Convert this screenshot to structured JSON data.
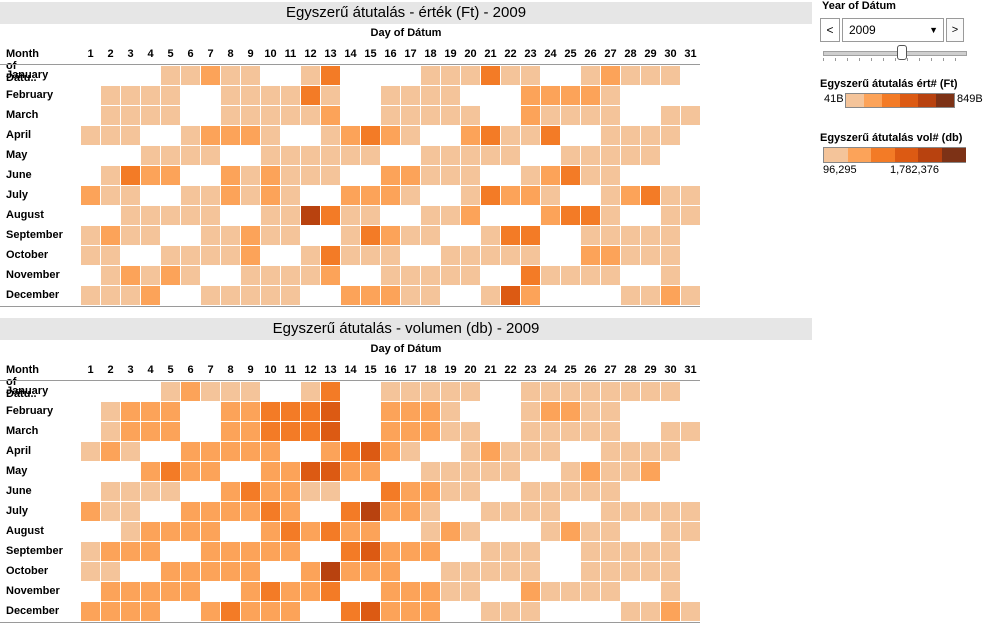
{
  "colors": [
    "#f4c49a",
    "#fca359",
    "#f37b26",
    "#dc5a13",
    "#b8420f",
    "#7d3216"
  ],
  "months": [
    "January",
    "February",
    "March",
    "April",
    "May",
    "June",
    "July",
    "August",
    "September",
    "October",
    "November",
    "December"
  ],
  "days": [
    "1",
    "2",
    "3",
    "4",
    "5",
    "6",
    "7",
    "8",
    "9",
    "10",
    "11",
    "12",
    "13",
    "14",
    "15",
    "16",
    "17",
    "18",
    "19",
    "20",
    "21",
    "22",
    "23",
    "24",
    "25",
    "26",
    "27",
    "28",
    "29",
    "30",
    "31"
  ],
  "row_header": "Month of Dátu..",
  "axis_title": "Day of Dátum",
  "controls": {
    "year_label": "Year of Dátum",
    "year_value": "2009",
    "prev": "<",
    "next": ">"
  },
  "legend_value": {
    "title": "Egyszerű átutalás ért# (Ft)",
    "min_label": "41B",
    "max_label": "849B"
  },
  "legend_volume": {
    "title": "Egyszerű átutalás vol# (db)",
    "min_label": "96,295",
    "max_label": "1,782,376"
  },
  "chart_data": [
    {
      "type": "heatmap",
      "title": "Egyszerű átutalás - érték (Ft) - 2009",
      "xlabel": "Day of Dátum",
      "ylabel": "Month of Dátu..",
      "scale": "0 = no transaction day, 1..6 = light to dark intensity bins",
      "rows": [
        [
          0,
          0,
          0,
          0,
          1,
          1,
          2,
          1,
          1,
          0,
          0,
          1,
          3,
          0,
          0,
          0,
          0,
          1,
          1,
          1,
          3,
          1,
          1,
          0,
          0,
          1,
          2,
          1,
          1,
          1,
          0
        ],
        [
          0,
          1,
          1,
          1,
          1,
          0,
          0,
          1,
          1,
          1,
          1,
          3,
          1,
          0,
          0,
          1,
          1,
          1,
          1,
          0,
          0,
          0,
          2,
          2,
          2,
          2,
          1,
          0,
          0,
          0,
          0
        ],
        [
          0,
          1,
          1,
          1,
          1,
          0,
          0,
          1,
          1,
          1,
          1,
          1,
          2,
          0,
          0,
          1,
          1,
          1,
          1,
          1,
          0,
          0,
          2,
          1,
          1,
          1,
          1,
          0,
          0,
          1,
          1
        ],
        [
          1,
          1,
          1,
          0,
          0,
          1,
          2,
          2,
          2,
          1,
          0,
          0,
          1,
          2,
          3,
          2,
          1,
          0,
          0,
          2,
          3,
          1,
          1,
          3,
          0,
          0,
          1,
          1,
          1,
          1,
          0
        ],
        [
          0,
          0,
          0,
          1,
          1,
          1,
          1,
          0,
          0,
          1,
          1,
          1,
          1,
          1,
          1,
          0,
          0,
          1,
          1,
          1,
          1,
          1,
          0,
          0,
          1,
          1,
          1,
          1,
          1,
          0,
          0
        ],
        [
          0,
          1,
          3,
          2,
          2,
          0,
          0,
          2,
          1,
          2,
          1,
          1,
          1,
          0,
          0,
          2,
          2,
          1,
          1,
          1,
          0,
          0,
          1,
          2,
          3,
          1,
          1,
          0,
          0,
          0,
          0
        ],
        [
          2,
          1,
          1,
          0,
          0,
          1,
          1,
          2,
          1,
          2,
          1,
          0,
          0,
          2,
          2,
          2,
          1,
          0,
          0,
          1,
          3,
          2,
          2,
          1,
          0,
          0,
          1,
          2,
          3,
          1,
          1
        ],
        [
          0,
          0,
          1,
          1,
          1,
          1,
          1,
          0,
          0,
          1,
          1,
          5,
          3,
          1,
          1,
          0,
          0,
          1,
          1,
          2,
          0,
          0,
          0,
          2,
          3,
          3,
          1,
          0,
          0,
          1,
          1
        ],
        [
          1,
          2,
          1,
          1,
          0,
          0,
          1,
          1,
          2,
          1,
          1,
          0,
          0,
          1,
          3,
          2,
          1,
          1,
          0,
          0,
          1,
          3,
          3,
          0,
          0,
          1,
          1,
          1,
          1,
          1,
          0
        ],
        [
          1,
          1,
          0,
          0,
          1,
          1,
          1,
          1,
          2,
          0,
          0,
          1,
          3,
          1,
          1,
          1,
          0,
          0,
          1,
          1,
          1,
          1,
          1,
          0,
          0,
          2,
          2,
          1,
          1,
          1,
          0
        ],
        [
          0,
          1,
          2,
          1,
          2,
          1,
          0,
          0,
          1,
          1,
          1,
          1,
          2,
          0,
          0,
          1,
          1,
          1,
          1,
          1,
          0,
          0,
          3,
          1,
          1,
          1,
          1,
          0,
          0,
          1,
          0
        ],
        [
          1,
          1,
          1,
          2,
          0,
          0,
          1,
          1,
          1,
          1,
          1,
          0,
          0,
          2,
          2,
          2,
          1,
          1,
          0,
          0,
          1,
          4,
          2,
          0,
          0,
          0,
          0,
          1,
          1,
          2,
          1
        ]
      ]
    },
    {
      "type": "heatmap",
      "title": "Egyszerű átutalás - volumen (db) - 2009",
      "xlabel": "Day of Dátum",
      "ylabel": "Month of Dátu..",
      "scale": "0 = no transaction day, 1..6 = light to dark intensity bins",
      "rows": [
        [
          0,
          0,
          0,
          0,
          1,
          2,
          1,
          1,
          1,
          0,
          0,
          1,
          3,
          0,
          0,
          1,
          1,
          1,
          1,
          1,
          0,
          0,
          1,
          1,
          1,
          1,
          1,
          1,
          1,
          1,
          0
        ],
        [
          0,
          1,
          2,
          2,
          2,
          0,
          0,
          2,
          2,
          3,
          3,
          3,
          4,
          0,
          0,
          2,
          2,
          2,
          1,
          0,
          0,
          0,
          1,
          2,
          2,
          1,
          1,
          0,
          0,
          0,
          0
        ],
        [
          0,
          1,
          2,
          2,
          2,
          0,
          0,
          2,
          2,
          3,
          3,
          3,
          4,
          0,
          0,
          2,
          2,
          2,
          1,
          1,
          0,
          0,
          1,
          1,
          1,
          1,
          1,
          0,
          0,
          1,
          1
        ],
        [
          1,
          2,
          1,
          0,
          0,
          2,
          2,
          2,
          2,
          2,
          0,
          0,
          2,
          3,
          4,
          2,
          1,
          0,
          0,
          1,
          2,
          1,
          1,
          1,
          0,
          0,
          1,
          1,
          1,
          1,
          0
        ],
        [
          0,
          0,
          0,
          2,
          3,
          2,
          2,
          0,
          0,
          2,
          2,
          4,
          4,
          2,
          2,
          0,
          0,
          1,
          1,
          1,
          1,
          1,
          0,
          0,
          1,
          2,
          1,
          1,
          2,
          0,
          0
        ],
        [
          0,
          1,
          1,
          1,
          1,
          0,
          0,
          2,
          3,
          2,
          2,
          1,
          1,
          0,
          0,
          3,
          2,
          2,
          1,
          1,
          0,
          0,
          1,
          1,
          1,
          1,
          1,
          0,
          0,
          0,
          0
        ],
        [
          2,
          1,
          1,
          0,
          0,
          2,
          2,
          2,
          2,
          3,
          2,
          0,
          0,
          3,
          5,
          2,
          2,
          1,
          0,
          0,
          1,
          1,
          1,
          1,
          0,
          0,
          1,
          1,
          1,
          1,
          1
        ],
        [
          0,
          0,
          1,
          2,
          2,
          2,
          2,
          0,
          0,
          2,
          3,
          2,
          3,
          2,
          2,
          0,
          0,
          1,
          2,
          1,
          0,
          0,
          0,
          1,
          2,
          1,
          1,
          0,
          0,
          1,
          1
        ],
        [
          1,
          2,
          2,
          2,
          0,
          0,
          2,
          2,
          2,
          2,
          2,
          0,
          0,
          3,
          4,
          2,
          2,
          2,
          0,
          0,
          1,
          1,
          1,
          0,
          0,
          1,
          1,
          1,
          1,
          1,
          0
        ],
        [
          1,
          1,
          0,
          0,
          2,
          2,
          2,
          2,
          2,
          0,
          0,
          2,
          5,
          2,
          2,
          2,
          0,
          0,
          1,
          1,
          1,
          1,
          1,
          0,
          0,
          1,
          1,
          1,
          1,
          1,
          0
        ],
        [
          0,
          2,
          2,
          2,
          2,
          2,
          0,
          0,
          2,
          3,
          2,
          2,
          3,
          0,
          0,
          2,
          2,
          2,
          1,
          1,
          0,
          0,
          2,
          1,
          1,
          1,
          1,
          0,
          0,
          1,
          0
        ],
        [
          2,
          2,
          2,
          2,
          0,
          0,
          2,
          3,
          2,
          2,
          2,
          0,
          0,
          3,
          4,
          2,
          2,
          2,
          0,
          0,
          1,
          1,
          1,
          0,
          0,
          0,
          0,
          1,
          1,
          2,
          1
        ]
      ]
    }
  ]
}
